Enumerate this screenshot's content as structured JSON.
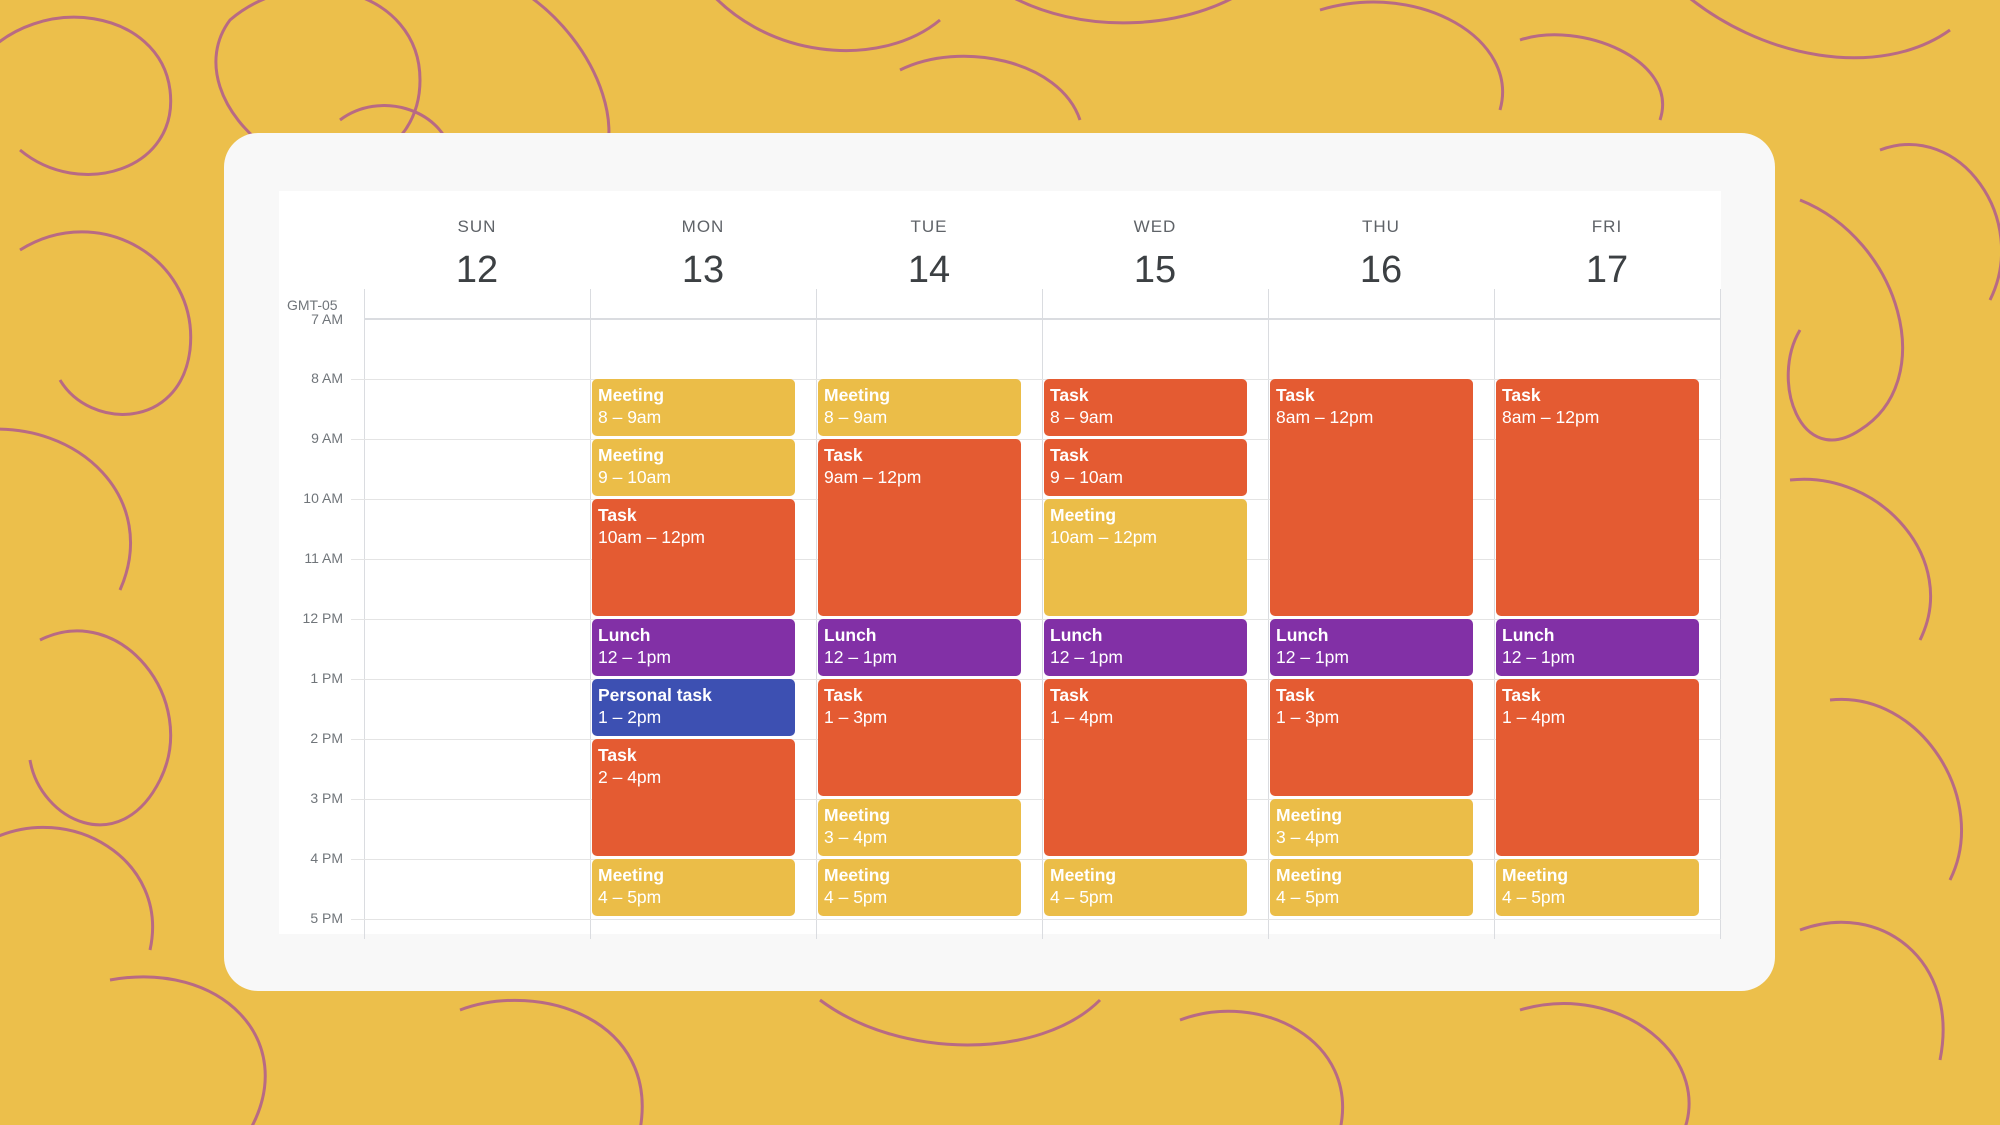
{
  "colors": {
    "background": "#ECBF4B",
    "pattern_stroke": "#B86A84",
    "meeting": "#EBBD48",
    "task": "#E45B32",
    "lunch": "#8230A6",
    "personal": "#3D50B2"
  },
  "calendar": {
    "timezone": "GMT-05",
    "days": [
      {
        "name": "SUN",
        "date": "12"
      },
      {
        "name": "MON",
        "date": "13"
      },
      {
        "name": "TUE",
        "date": "14"
      },
      {
        "name": "WED",
        "date": "15"
      },
      {
        "name": "THU",
        "date": "16"
      },
      {
        "name": "FRI",
        "date": "17"
      }
    ],
    "hours": [
      "7 AM",
      "8 AM",
      "9 AM",
      "10 AM",
      "11 AM",
      "12 PM",
      "1 PM",
      "2 PM",
      "3 PM",
      "4 PM",
      "5 PM"
    ],
    "events": [
      {
        "day": 1,
        "start": 8,
        "end": 9,
        "type": "meeting",
        "title": "Meeting",
        "time": "8 – 9am"
      },
      {
        "day": 1,
        "start": 9,
        "end": 10,
        "type": "meeting",
        "title": "Meeting",
        "time": "9 – 10am"
      },
      {
        "day": 1,
        "start": 10,
        "end": 12,
        "type": "task",
        "title": "Task",
        "time": "10am – 12pm"
      },
      {
        "day": 1,
        "start": 12,
        "end": 13,
        "type": "lunch",
        "title": "Lunch",
        "time": "12 – 1pm"
      },
      {
        "day": 1,
        "start": 13,
        "end": 14,
        "type": "personal",
        "title": "Personal task",
        "time": "1 – 2pm"
      },
      {
        "day": 1,
        "start": 14,
        "end": 16,
        "type": "task",
        "title": "Task",
        "time": "2 – 4pm"
      },
      {
        "day": 1,
        "start": 16,
        "end": 17,
        "type": "meeting",
        "title": "Meeting",
        "time": "4 – 5pm"
      },
      {
        "day": 2,
        "start": 8,
        "end": 9,
        "type": "meeting",
        "title": "Meeting",
        "time": "8 – 9am"
      },
      {
        "day": 2,
        "start": 9,
        "end": 12,
        "type": "task",
        "title": "Task",
        "time": "9am – 12pm"
      },
      {
        "day": 2,
        "start": 12,
        "end": 13,
        "type": "lunch",
        "title": "Lunch",
        "time": "12 – 1pm"
      },
      {
        "day": 2,
        "start": 13,
        "end": 15,
        "type": "task",
        "title": "Task",
        "time": "1 – 3pm"
      },
      {
        "day": 2,
        "start": 15,
        "end": 16,
        "type": "meeting",
        "title": "Meeting",
        "time": "3 – 4pm"
      },
      {
        "day": 2,
        "start": 16,
        "end": 17,
        "type": "meeting",
        "title": "Meeting",
        "time": "4 – 5pm"
      },
      {
        "day": 3,
        "start": 8,
        "end": 9,
        "type": "task",
        "title": "Task",
        "time": "8 – 9am"
      },
      {
        "day": 3,
        "start": 9,
        "end": 10,
        "type": "task",
        "title": "Task",
        "time": "9 – 10am"
      },
      {
        "day": 3,
        "start": 10,
        "end": 12,
        "type": "meeting",
        "title": "Meeting",
        "time": "10am – 12pm"
      },
      {
        "day": 3,
        "start": 12,
        "end": 13,
        "type": "lunch",
        "title": "Lunch",
        "time": "12 – 1pm"
      },
      {
        "day": 3,
        "start": 13,
        "end": 16,
        "type": "task",
        "title": "Task",
        "time": "1 – 4pm"
      },
      {
        "day": 3,
        "start": 16,
        "end": 17,
        "type": "meeting",
        "title": "Meeting",
        "time": "4 – 5pm"
      },
      {
        "day": 4,
        "start": 8,
        "end": 12,
        "type": "task",
        "title": "Task",
        "time": "8am – 12pm"
      },
      {
        "day": 4,
        "start": 12,
        "end": 13,
        "type": "lunch",
        "title": "Lunch",
        "time": "12 – 1pm"
      },
      {
        "day": 4,
        "start": 13,
        "end": 15,
        "type": "task",
        "title": "Task",
        "time": "1 – 3pm"
      },
      {
        "day": 4,
        "start": 15,
        "end": 16,
        "type": "meeting",
        "title": "Meeting",
        "time": "3 – 4pm"
      },
      {
        "day": 4,
        "start": 16,
        "end": 17,
        "type": "meeting",
        "title": "Meeting",
        "time": "4 – 5pm"
      },
      {
        "day": 5,
        "start": 8,
        "end": 12,
        "type": "task",
        "title": "Task",
        "time": "8am – 12pm"
      },
      {
        "day": 5,
        "start": 12,
        "end": 13,
        "type": "lunch",
        "title": "Lunch",
        "time": "12 – 1pm"
      },
      {
        "day": 5,
        "start": 13,
        "end": 16,
        "type": "task",
        "title": "Task",
        "time": "1 – 4pm"
      },
      {
        "day": 5,
        "start": 16,
        "end": 17,
        "type": "meeting",
        "title": "Meeting",
        "time": "4 – 5pm"
      }
    ]
  }
}
